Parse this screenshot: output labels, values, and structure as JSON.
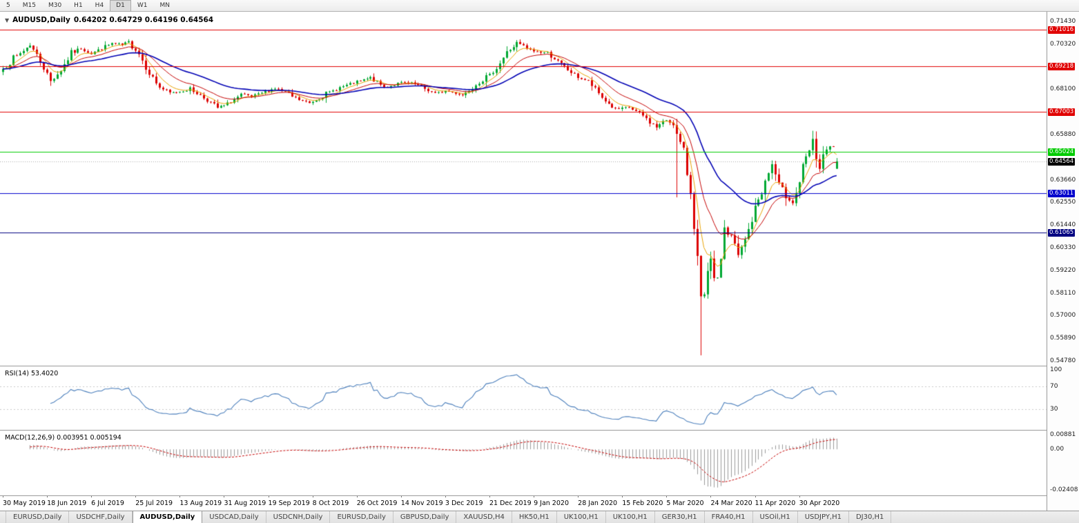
{
  "toolbar": {
    "timeframes": [
      "5",
      "M15",
      "M30",
      "H1",
      "H4",
      "D1",
      "W1",
      "MN"
    ],
    "active": "D1"
  },
  "main_chart": {
    "dropdown_icon": "▼",
    "title": "AUDUSD,Daily",
    "ohlc_values": "0.64202 0.64729 0.64196 0.64564",
    "current_price": "0.64564",
    "price_axis": {
      "ticks": [
        "0.71430",
        "0.70320",
        "0.69210",
        "0.68100",
        "0.66990",
        "0.65880",
        "0.64770",
        "0.63660",
        "0.62550",
        "0.61440",
        "0.60330",
        "0.59220",
        "0.58110",
        "0.57000",
        "0.55890",
        "0.54780"
      ],
      "hidden_ticks": [
        "0.69210",
        "0.66990",
        "0.64770"
      ]
    },
    "lines": [
      {
        "label": "0.71016",
        "value": 0.71016,
        "color": "#e00000",
        "kind": "resistance"
      },
      {
        "label": "0.69218",
        "value": 0.69218,
        "color": "#e00000",
        "kind": "resistance"
      },
      {
        "label": "0.67003",
        "value": 0.67003,
        "color": "#e00000",
        "kind": "resistance"
      },
      {
        "label": "0.65024",
        "value": 0.65024,
        "color": "#00cc00",
        "kind": "level"
      },
      {
        "label": "0.63011",
        "value": 0.63011,
        "color": "#0000cc",
        "kind": "support"
      },
      {
        "label": "0.61065",
        "value": 0.61065,
        "color": "#000080",
        "kind": "support"
      }
    ]
  },
  "chart_data": {
    "type": "candlestick",
    "symbol": "AUDUSD",
    "timeframe": "Daily",
    "last_ohlc": {
      "open": "0.64202",
      "high": "0.64729",
      "low": "0.64196",
      "close": "0.64564"
    },
    "price_range": [
      0.5478,
      0.7143
    ],
    "close_anchors": [
      [
        0,
        0.691
      ],
      [
        3,
        0.696
      ],
      [
        6,
        0.7
      ],
      [
        8,
        0.703
      ],
      [
        11,
        0.695
      ],
      [
        14,
        0.685
      ],
      [
        17,
        0.6905
      ],
      [
        20,
        0.6985
      ],
      [
        23,
        0.701
      ],
      [
        26,
        0.6985
      ],
      [
        29,
        0.701
      ],
      [
        32,
        0.7035
      ],
      [
        35,
        0.7025
      ],
      [
        37,
        0.7042
      ],
      [
        40,
        0.6985
      ],
      [
        43,
        0.689
      ],
      [
        46,
        0.682
      ],
      [
        49,
        0.679
      ],
      [
        52,
        0.68
      ],
      [
        55,
        0.6812
      ],
      [
        58,
        0.678
      ],
      [
        61,
        0.6745
      ],
      [
        63,
        0.6718
      ],
      [
        65,
        0.673
      ],
      [
        67,
        0.6748
      ],
      [
        70,
        0.6782
      ],
      [
        73,
        0.6772
      ],
      [
        76,
        0.6792
      ],
      [
        80,
        0.6815
      ],
      [
        83,
        0.6795
      ],
      [
        85,
        0.6772
      ],
      [
        88,
        0.6752
      ],
      [
        90,
        0.6742
      ],
      [
        93,
        0.6772
      ],
      [
        96,
        0.6795
      ],
      [
        99,
        0.6818
      ],
      [
        102,
        0.6835
      ],
      [
        105,
        0.685
      ],
      [
        108,
        0.6866
      ],
      [
        110,
        0.6845
      ],
      [
        112,
        0.682
      ],
      [
        115,
        0.6832
      ],
      [
        117,
        0.6842
      ],
      [
        120,
        0.6838
      ],
      [
        122,
        0.6828
      ],
      [
        125,
        0.6805
      ],
      [
        127,
        0.6788
      ],
      [
        130,
        0.6802
      ],
      [
        133,
        0.6792
      ],
      [
        135,
        0.6782
      ],
      [
        137,
        0.6808
      ],
      [
        139,
        0.684
      ],
      [
        141,
        0.6858
      ],
      [
        143,
        0.688
      ],
      [
        146,
        0.694
      ],
      [
        148,
        0.699
      ],
      [
        151,
        0.7035
      ],
      [
        153,
        0.702
      ],
      [
        155,
        0.7
      ],
      [
        158,
        0.6992
      ],
      [
        160,
        0.699
      ],
      [
        162,
        0.696
      ],
      [
        164,
        0.693
      ],
      [
        166,
        0.6905
      ],
      [
        168,
        0.688
      ],
      [
        170,
        0.6862
      ],
      [
        172,
        0.685
      ],
      [
        174,
        0.6808
      ],
      [
        176,
        0.677
      ],
      [
        178,
        0.6738
      ],
      [
        180,
        0.671
      ],
      [
        182,
        0.6715
      ],
      [
        184,
        0.6722
      ],
      [
        186,
        0.67
      ],
      [
        188,
        0.668
      ],
      [
        190,
        0.665
      ],
      [
        192,
        0.6625
      ],
      [
        194,
        0.6648
      ],
      [
        195,
        0.666
      ],
      [
        197,
        0.664
      ],
      [
        198,
        0.6582
      ],
      [
        199,
        0.654
      ],
      [
        200,
        0.65
      ],
      [
        201,
        0.64
      ],
      [
        202,
        0.631
      ],
      [
        203,
        0.615
      ],
      [
        204,
        0.598
      ],
      [
        205,
        0.577
      ],
      [
        206,
        0.58
      ],
      [
        207,
        0.59
      ],
      [
        208,
        0.596
      ],
      [
        209,
        0.59
      ],
      [
        210,
        0.588
      ],
      [
        211,
        0.599
      ],
      [
        212,
        0.613
      ],
      [
        213,
        0.61
      ],
      [
        214,
        0.609
      ],
      [
        215,
        0.604
      ],
      [
        216,
        0.599
      ],
      [
        217,
        0.603
      ],
      [
        218,
        0.607
      ],
      [
        219,
        0.612
      ],
      [
        220,
        0.617
      ],
      [
        221,
        0.622
      ],
      [
        222,
        0.627
      ],
      [
        223,
        0.631
      ],
      [
        224,
        0.635
      ],
      [
        225,
        0.64
      ],
      [
        226,
        0.644
      ],
      [
        227,
        0.639
      ],
      [
        228,
        0.633
      ],
      [
        229,
        0.631
      ],
      [
        230,
        0.629
      ],
      [
        231,
        0.627
      ],
      [
        232,
        0.6255
      ],
      [
        233,
        0.63
      ],
      [
        234,
        0.636
      ],
      [
        235,
        0.642
      ],
      [
        236,
        0.647
      ],
      [
        237,
        0.651
      ],
      [
        238,
        0.655
      ],
      [
        239,
        0.648
      ],
      [
        240,
        0.642
      ],
      [
        241,
        0.647
      ],
      [
        242,
        0.651
      ],
      [
        243,
        0.6525
      ],
      [
        244,
        0.653
      ],
      [
        245,
        0.6456
      ]
    ],
    "wick_overrides": [
      {
        "day": 198,
        "low": 0.628,
        "high": 0.6665
      },
      {
        "day": 205,
        "low": 0.5505
      }
    ],
    "moving_averages": [
      {
        "name": "fast-ma",
        "period": 6,
        "color": "#e8a200",
        "width": 1
      },
      {
        "name": "mid-ma",
        "period": 14,
        "color": "#c40000",
        "width": 1
      },
      {
        "name": "slow-ma",
        "period": 34,
        "color": "#0000b4",
        "width": 1.6
      }
    ]
  },
  "rsi_panel": {
    "label": "RSI(14) 53.4020",
    "ticks": [
      {
        "value": 100,
        "label": "100"
      },
      {
        "value": 70,
        "label": "70"
      },
      {
        "value": 30,
        "label": "30"
      }
    ],
    "levels": [
      70,
      30
    ],
    "line_color": "#4a7ebb"
  },
  "macd_panel": {
    "label": "MACD(12,26,9) 0.003951 0.005194",
    "ticks": [
      {
        "value": 0.00881,
        "label": "0.00881"
      },
      {
        "value": 0,
        "label": "0.00"
      },
      {
        "value": -0.02408,
        "label": "-0.02408"
      }
    ],
    "range": [
      -0.0245,
      0.0095
    ],
    "histogram_color": "#9a9a9a",
    "signal_color": "#c40000"
  },
  "time_axis": {
    "labels": [
      "30 May 2019",
      "18 Jun 2019",
      "6 Jul 2019",
      "25 Jul 2019",
      "13 Aug 2019",
      "31 Aug 2019",
      "19 Sep 2019",
      "8 Oct 2019",
      "26 Oct 2019",
      "14 Nov 2019",
      "3 Dec 2019",
      "21 Dec 2019",
      "9 Jan 2020",
      "28 Jan 2020",
      "15 Feb 2020",
      "5 Mar 2020",
      "24 Mar 2020",
      "11 Apr 2020",
      "30 Apr 2020"
    ]
  },
  "tabs": {
    "active_index": 2,
    "items": [
      "EURUSD,Daily",
      "USDCHF,Daily",
      "AUDUSD,Daily",
      "USDCAD,Daily",
      "USDCNH,Daily",
      "EURUSD,Daily",
      "GBPUSD,Daily",
      "XAUUSD,H4",
      "HK50,H1",
      "UK100,H1",
      "UK100,H1",
      "GER30,H1",
      "FRA40,H1",
      "USOil,H1",
      "USDJPY,H1",
      "DJ30,H1"
    ]
  },
  "colors": {
    "bull": "#00a832",
    "bear": "#dc0000",
    "current_price_bg": "#000000",
    "current_price_text": "#ffffff",
    "separator": "#9a9a9a",
    "current_price_line": "#aaaaaa"
  }
}
